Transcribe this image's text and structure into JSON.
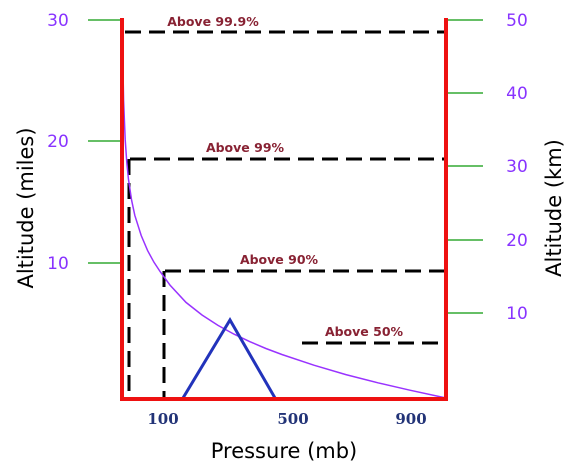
{
  "chart_data": {
    "type": "line",
    "xlabel": "Pressure (mb)",
    "ylabel_left": "Altitude (miles)",
    "ylabel_right": "Altitude (km)",
    "x_ticks": [
      "100",
      "500",
      "900"
    ],
    "y_left_ticks": [
      "10",
      "20",
      "30"
    ],
    "y_right_ticks": [
      "10",
      "20",
      "30",
      "40",
      "50"
    ],
    "y_left_range": [
      0,
      30
    ],
    "y_right_range": [
      0,
      50
    ],
    "x_range": [
      0,
      1013
    ],
    "series": [
      {
        "x": [
          1013,
          900,
          800,
          700,
          600,
          500,
          450,
          400,
          350,
          300,
          250,
          200,
          150,
          120,
          100,
          80,
          60,
          40,
          30,
          20,
          15,
          10,
          5,
          2,
          1
        ],
        "y": [
          0,
          0.62,
          1.21,
          1.86,
          2.6,
          3.45,
          3.93,
          4.47,
          5.07,
          5.76,
          6.59,
          7.59,
          8.96,
          10.0,
          10.77,
          11.7,
          12.9,
          14.5,
          15.7,
          17.4,
          18.7,
          20.5,
          23.6,
          27.6,
          30.0
        ]
      }
    ],
    "annotations": [
      {
        "label": "Above 50%",
        "pressure": 500
      },
      {
        "label": "Above 90%",
        "pressure": 100
      },
      {
        "label": "Above 99%",
        "pressure": 10
      },
      {
        "label": "Above 99.9%",
        "pressure": 1
      }
    ],
    "colors": {
      "frame": "#ee1111",
      "curve": "#9933ff",
      "left_ticks": "#8833ff",
      "right_ticks": "#8833ff",
      "tick_lines": "#33aa33",
      "x_ticks": "#223377",
      "annotation_text": "#882233",
      "dashes": "#000000",
      "triangle": "#2233bb"
    }
  }
}
